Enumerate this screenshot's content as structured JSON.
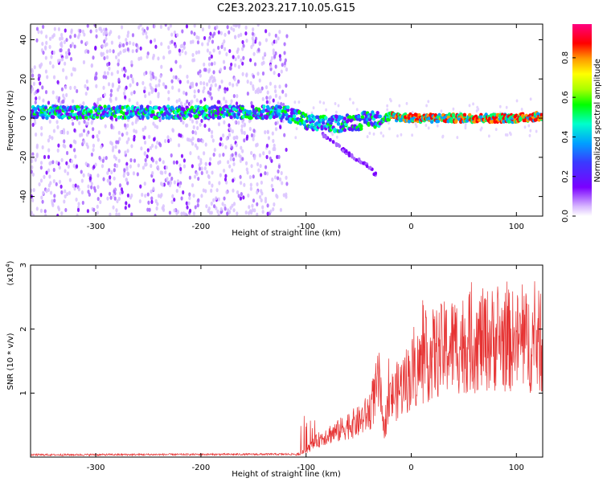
{
  "title": "C2E3.2023.217.10.05.G15",
  "chart_data": [
    {
      "type": "heatmap",
      "name": "spectrogram",
      "xlabel": "Height of straight line (km)",
      "ylabel": "Frequency (Hz)",
      "xlim": [
        -362,
        125
      ],
      "ylim": [
        -50,
        48
      ],
      "xticks": [
        -300,
        -200,
        -100,
        0,
        100
      ],
      "yticks": [
        -40,
        -20,
        0,
        20,
        40
      ],
      "colorbar": {
        "label": "Normalized spectral amplitude",
        "range": [
          0,
          1
        ],
        "ticks": [
          "0.0",
          "0.2",
          "0.4",
          "0.6",
          "0.8"
        ],
        "colors": [
          "#ffffff",
          "#d8b8ff",
          "#7a00ff",
          "#3a3aff",
          "#00a0ff",
          "#00ffcc",
          "#00ff00",
          "#aaff00",
          "#ffff00",
          "#ff9900",
          "#ff0000",
          "#ff0080"
        ]
      },
      "features": {
        "carrier_band_center_hz": [
          [
            -362,
            3
          ],
          [
            -300,
            3
          ],
          [
            -250,
            3
          ],
          [
            -200,
            3
          ],
          [
            -150,
            3
          ],
          [
            -120,
            3
          ],
          [
            -110,
            1
          ],
          [
            -100,
            -2
          ],
          [
            -90,
            -3
          ],
          [
            -80,
            -3
          ],
          [
            -70,
            -3
          ],
          [
            -60,
            -2
          ],
          [
            -50,
            -2
          ],
          [
            -40,
            0
          ],
          [
            -30,
            -1
          ],
          [
            -25,
            0
          ],
          [
            -20,
            1
          ],
          [
            0,
            0
          ],
          [
            50,
            0
          ],
          [
            100,
            0
          ],
          [
            125,
            1
          ]
        ],
        "scatter_region_x": [
          -362,
          -118
        ],
        "diverging_tail": [
          [
            -85,
            -8
          ],
          [
            -75,
            -12
          ],
          [
            -60,
            -18
          ],
          [
            -40,
            -25
          ],
          [
            -32,
            -30
          ]
        ]
      }
    },
    {
      "type": "line",
      "name": "snr",
      "xlabel": "Height of straight line (km)",
      "ylabel": "SNR (10 * v/v)",
      "scale_label": "(x10",
      "scale_exp": "4",
      "scale_close": ")",
      "xlim": [
        -362,
        125
      ],
      "ylim": [
        0,
        3
      ],
      "xticks": [
        -300,
        -200,
        -100,
        0,
        100
      ],
      "yticks": [
        1,
        2,
        3
      ],
      "color": "#e63232",
      "envelope": [
        [
          -362,
          0.02
        ],
        [
          -110,
          0.03
        ],
        [
          -100,
          0.1
        ],
        [
          -90,
          0.25
        ],
        [
          -80,
          0.35
        ],
        [
          -70,
          0.4
        ],
        [
          -60,
          0.5
        ],
        [
          -50,
          0.55
        ],
        [
          -40,
          0.7
        ],
        [
          -30,
          1.2
        ],
        [
          -27,
          0.4
        ],
        [
          -20,
          0.9
        ],
        [
          -15,
          1.0
        ],
        [
          -10,
          1.1
        ],
        [
          0,
          1.3
        ],
        [
          20,
          1.6
        ],
        [
          40,
          1.75
        ],
        [
          60,
          1.8
        ],
        [
          80,
          1.85
        ],
        [
          100,
          1.8
        ],
        [
          125,
          1.8
        ]
      ]
    }
  ]
}
